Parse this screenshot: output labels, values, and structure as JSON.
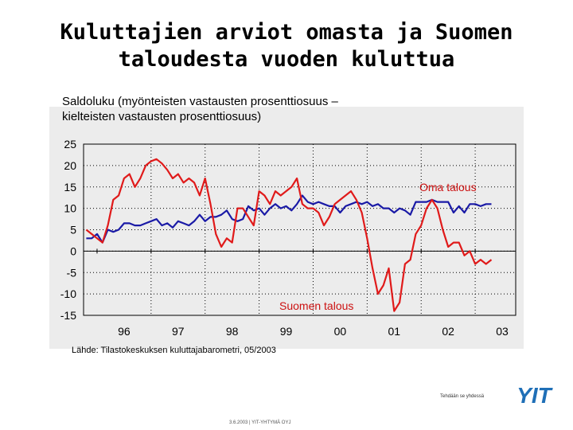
{
  "page": {
    "title_line1": "Kuluttajien arviot omasta ja Suomen",
    "title_line2": "taloudesta vuoden kuluttua",
    "subtitle_line1": "Saldoluku (myönteisten vastausten prosenttiosuus –",
    "subtitle_line2": "kielteisten vastausten prosenttiosuus)",
    "source": "Lähde: Tilastokeskuksen kuluttajabarometri, 05/2003",
    "tagline": "Tehdään se yhdessä",
    "footer": "3.6.2003   |   YIT-YHTYMÄ OYJ",
    "logo_text": "YIT"
  },
  "colors": {
    "oma": "#1a1aa6",
    "suomi": "#e01a1a",
    "label": "#cc1111",
    "logo": "#1f6fb7"
  },
  "chart_data": {
    "type": "line",
    "title": "Kuluttajien arviot omasta ja Suomen taloudesta vuoden kuluttua",
    "ylabel": "Saldoluku",
    "ylim": [
      -15,
      25
    ],
    "yticks": [
      25,
      20,
      15,
      10,
      5,
      0,
      -5,
      -10,
      -15
    ],
    "xlim": [
      1995.75,
      2003.75
    ],
    "xticks": [
      {
        "label": "96",
        "pos": 1996.5
      },
      {
        "label": "97",
        "pos": 1997.5
      },
      {
        "label": "98",
        "pos": 1998.5
      },
      {
        "label": "99",
        "pos": 1999.5
      },
      {
        "label": "00",
        "pos": 2000.5
      },
      {
        "label": "01",
        "pos": 2001.5
      },
      {
        "label": "02",
        "pos": 2002.5
      },
      {
        "label": "03",
        "pos": 2003.5
      }
    ],
    "annotations": [
      {
        "text": "Oma talous",
        "series": "Oma talous"
      },
      {
        "text": "Suomen talous",
        "series": "Suomen talous"
      }
    ],
    "series": [
      {
        "name": "Oma talous",
        "x": [
          1995.8,
          1995.9,
          1996.0,
          1996.1,
          1996.2,
          1996.3,
          1996.4,
          1996.5,
          1996.6,
          1996.7,
          1996.8,
          1996.9,
          1997.0,
          1997.1,
          1997.2,
          1997.3,
          1997.4,
          1997.5,
          1997.6,
          1997.7,
          1997.8,
          1997.9,
          1998.0,
          1998.1,
          1998.2,
          1998.3,
          1998.4,
          1998.5,
          1998.6,
          1998.7,
          1998.8,
          1998.9,
          1999.0,
          1999.1,
          1999.2,
          1999.3,
          1999.4,
          1999.5,
          1999.6,
          1999.7,
          1999.8,
          1999.9,
          2000.0,
          2000.1,
          2000.2,
          2000.3,
          2000.4,
          2000.5,
          2000.6,
          2000.7,
          2000.8,
          2000.9,
          2001.0,
          2001.1,
          2001.2,
          2001.3,
          2001.4,
          2001.5,
          2001.6,
          2001.7,
          2001.8,
          2001.9,
          2002.0,
          2002.1,
          2002.2,
          2002.3,
          2002.4,
          2002.5,
          2002.6,
          2002.7,
          2002.8,
          2002.9,
          2003.0,
          2003.1,
          2003.2,
          2003.3
        ],
        "values": [
          3,
          3,
          4,
          2,
          5,
          4.5,
          5,
          6.5,
          6.5,
          6,
          6,
          6.5,
          7,
          7.5,
          6,
          6.5,
          5.5,
          7,
          6.5,
          6,
          7,
          8.5,
          7,
          8,
          8,
          8.5,
          9.5,
          7.5,
          7,
          7.5,
          10.5,
          9.5,
          10,
          8.5,
          10,
          11,
          10,
          10.5,
          9.5,
          11,
          13,
          11.5,
          11,
          11.5,
          11,
          10.5,
          10.5,
          9,
          10.5,
          11,
          11.5,
          11,
          11.5,
          10.5,
          11,
          10,
          10,
          9,
          10,
          9.5,
          8.5,
          11.5,
          11.5,
          11.5,
          12,
          11.5,
          11.5,
          11.5,
          9,
          10.5,
          9,
          11,
          11,
          10.5,
          11,
          11
        ]
      },
      {
        "name": "Suomen talous",
        "x": [
          1995.8,
          1995.9,
          1996.0,
          1996.1,
          1996.2,
          1996.3,
          1996.4,
          1996.5,
          1996.6,
          1996.7,
          1996.8,
          1996.9,
          1997.0,
          1997.1,
          1997.2,
          1997.3,
          1997.4,
          1997.5,
          1997.6,
          1997.7,
          1997.8,
          1997.9,
          1998.0,
          1998.1,
          1998.2,
          1998.3,
          1998.4,
          1998.5,
          1998.6,
          1998.7,
          1998.8,
          1998.9,
          1999.0,
          1999.1,
          1999.2,
          1999.3,
          1999.4,
          1999.5,
          1999.6,
          1999.7,
          1999.8,
          1999.9,
          2000.0,
          2000.1,
          2000.2,
          2000.3,
          2000.4,
          2000.5,
          2000.6,
          2000.7,
          2000.8,
          2000.9,
          2001.0,
          2001.1,
          2001.2,
          2001.3,
          2001.4,
          2001.5,
          2001.6,
          2001.7,
          2001.8,
          2001.9,
          2002.0,
          2002.1,
          2002.2,
          2002.3,
          2002.4,
          2002.5,
          2002.6,
          2002.7,
          2002.8,
          2002.9,
          2003.0,
          2003.1,
          2003.2,
          2003.3
        ],
        "values": [
          5,
          4,
          3,
          2,
          6,
          12,
          13,
          17,
          18,
          15,
          17,
          20,
          21,
          21.5,
          20.5,
          19,
          17,
          18,
          16,
          17,
          16,
          13,
          17,
          11,
          4,
          1,
          3,
          2,
          10,
          10,
          8,
          6,
          14,
          13,
          11,
          14,
          13,
          14,
          15,
          17,
          11,
          10,
          10,
          9,
          6,
          8,
          11,
          12,
          13,
          14,
          12,
          9,
          3,
          -4,
          -10,
          -8,
          -4,
          -14,
          -12,
          -3,
          -2,
          4,
          6,
          10,
          12,
          10,
          5,
          1,
          2,
          2,
          -1,
          0,
          -3,
          -2,
          -3,
          -2
        ]
      }
    ]
  }
}
